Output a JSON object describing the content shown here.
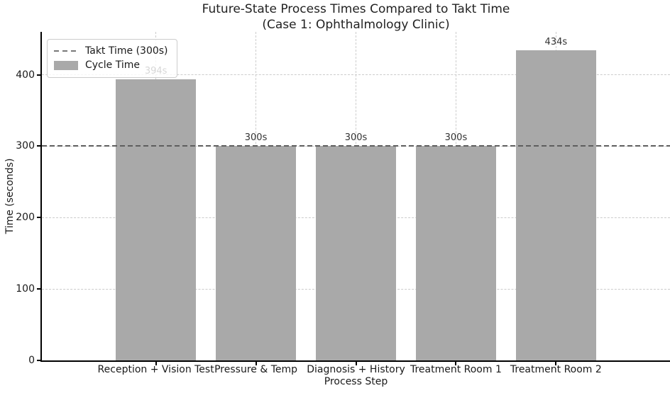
{
  "figure": {
    "title_lines": [
      "Future-State Process Times Compared to Takt Time",
      "(Case 1: Ophthalmology Clinic)"
    ]
  },
  "chart_data": {
    "type": "bar",
    "title": "Future-State Process Times Compared to Takt Time (Case 1: Ophthalmology Clinic)",
    "xlabel": "Process Step",
    "ylabel": "Time (seconds)",
    "categories": [
      "Reception + Vision Test",
      "Pressure & Temp",
      "Diagnosis + History",
      "Treatment Room 1",
      "Treatment Room 2"
    ],
    "series": [
      {
        "name": "Cycle Time",
        "values": [
          394,
          300,
          300,
          300,
          434
        ]
      }
    ],
    "bar_labels": [
      "394s",
      "300s",
      "300s",
      "300s",
      "434s"
    ],
    "yticks": [
      0,
      100,
      200,
      300,
      400
    ],
    "ylim": [
      0,
      460
    ],
    "takt_line": {
      "value": 300,
      "label": "Takt Time (300s)"
    },
    "grid": true,
    "legend": {
      "position": "upper left",
      "entries": [
        {
          "label": "Takt Time (300s)",
          "swatch": "dashed-line"
        },
        {
          "label": "Cycle Time",
          "swatch": "patch"
        }
      ]
    },
    "colors": {
      "bar": "#a9a9a9",
      "takt_line": "#5e5e5e",
      "grid": "#cccccc",
      "spine": "#000000",
      "text": "#1a1a1a"
    }
  }
}
